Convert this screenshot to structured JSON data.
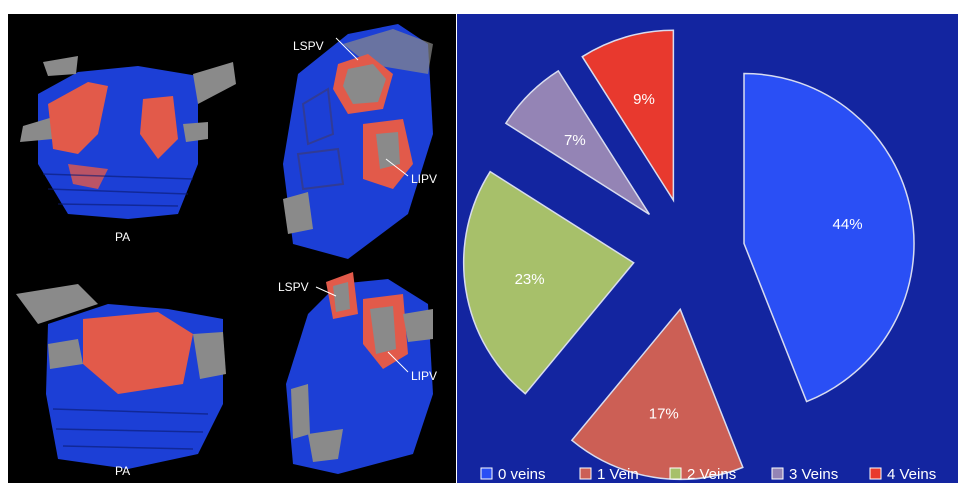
{
  "left_panel": {
    "views": [
      {
        "label": "PA"
      },
      {
        "labels": [
          "LSPV",
          "LIPV"
        ]
      },
      {
        "label": "PA"
      },
      {
        "labels": [
          "LSPV",
          "LIPV"
        ]
      }
    ],
    "colors": {
      "background": "#000000",
      "blue": "#1c3fd6",
      "red": "#e25a4a",
      "gray": "#8a8a8a"
    }
  },
  "chart_data": {
    "type": "pie",
    "background": "#1325a0",
    "exploded": true,
    "categories": [
      "0 veins",
      "1 Vein",
      "2 Veins",
      "3 Veins",
      "4 Veins"
    ],
    "values": [
      44,
      17,
      23,
      7,
      9
    ],
    "data_labels": [
      "44%",
      "17%",
      "23%",
      "7%",
      "9%"
    ],
    "colors": [
      "#2a4ff5",
      "#cc5f55",
      "#a7c06a",
      "#9484b5",
      "#e8392e"
    ],
    "legend_position": "bottom"
  }
}
